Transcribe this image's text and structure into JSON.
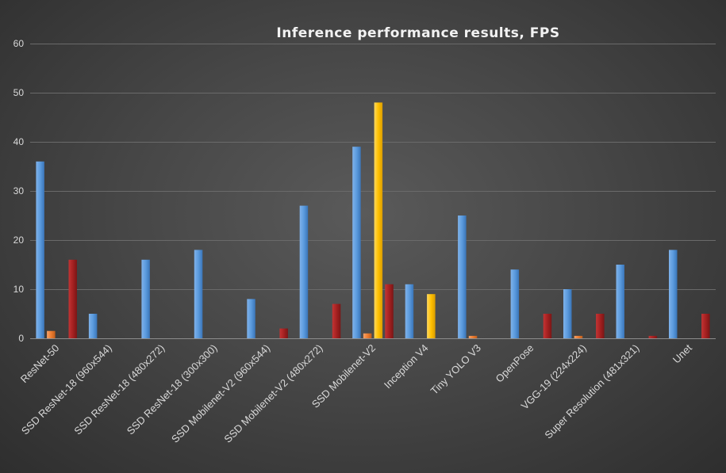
{
  "chart_data": {
    "type": "bar",
    "title": "Inference performance results, FPS",
    "xlabel": "",
    "ylabel": "",
    "ylim": [
      0,
      60
    ],
    "yticks": [
      0,
      10,
      20,
      30,
      40,
      50,
      60
    ],
    "grid": true,
    "legend": "none",
    "categories": [
      "ResNet-50",
      "SSD ResNet-18 (960x544)",
      "SSD ResNet-18 (480x272)",
      "SSD ResNet-18 (300x300)",
      "SSD Mobilenet-V2 (960x544)",
      "SSD Mobilenet-V2 (480x272)",
      "SSD Mobilenet-V2",
      "Inception V4",
      "Tiny YOLO V3",
      "OpenPose",
      "VGG-19 (224x224)",
      "Super Resolution (481x321)",
      "Unet"
    ],
    "series": [
      {
        "color": "#4f8fd6",
        "values": [
          36,
          5,
          16,
          18,
          8,
          27,
          39,
          11,
          25,
          14,
          10,
          15,
          18
        ]
      },
      {
        "color": "#ed7d31",
        "values": [
          1.5,
          0,
          0,
          0,
          0,
          0,
          1,
          0,
          0.5,
          0,
          0.5,
          0,
          0
        ]
      },
      {
        "color": "#ffc000",
        "values": [
          0,
          0,
          0,
          0,
          0,
          0,
          48,
          9,
          0,
          0,
          0,
          0,
          0
        ]
      },
      {
        "color": "#a52121",
        "values": [
          16,
          0,
          0,
          0,
          2,
          7,
          11,
          0,
          0,
          5,
          5,
          0.5,
          5
        ]
      }
    ]
  }
}
